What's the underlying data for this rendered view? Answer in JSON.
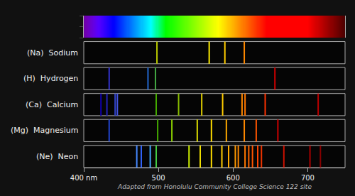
{
  "chart_data": {
    "type": "spectrum",
    "xlim": [
      400,
      750
    ],
    "xticks": [
      {
        "value": 400,
        "label": "400 nm"
      },
      500,
      600,
      700
    ],
    "grid": false,
    "series": [
      {
        "name": "(Na)  Sodium",
        "values": [
          498,
          568,
          589,
          615
        ],
        "colors": [
          "#b8c800",
          "#ffee00",
          "#ffcc00",
          "#ff8800"
        ]
      },
      {
        "name": "(H)  Hydrogen",
        "values": [
          434,
          486,
          496,
          656
        ],
        "colors": [
          "#3333cc",
          "#2266cc",
          "#44aa44",
          "#cc0000"
        ]
      },
      {
        "name": "(Ca)  Calcium",
        "values": [
          423,
          431,
          442,
          445,
          497,
          527,
          558,
          586,
          612,
          616,
          643,
          714
        ],
        "colors": [
          "#1100aa",
          "#2222bb",
          "#3344cc",
          "#4455dd",
          "#44aa00",
          "#88bb00",
          "#ddcc00",
          "#ffcc00",
          "#ff8800",
          "#ff7700",
          "#ff3300",
          "#bb0000"
        ]
      },
      {
        "name": "(Mg)  Magnesium",
        "values": [
          434,
          499,
          518,
          552,
          571,
          591,
          615,
          631,
          660
        ],
        "colors": [
          "#2244cc",
          "#44aa00",
          "#88cc00",
          "#dddd00",
          "#ffdd00",
          "#ffaa00",
          "#ff8800",
          "#ff5500",
          "#cc0000"
        ]
      },
      {
        "name": "(Ne)  Neon",
        "values": [
          471,
          477,
          489,
          497,
          541,
          556,
          571,
          585,
          594,
          603,
          607,
          616,
          621,
          626,
          633,
          638,
          668,
          703,
          717
        ],
        "colors": [
          "#4488ff",
          "#3366ff",
          "#44aaff",
          "#44cc44",
          "#ccee00",
          "#eedd00",
          "#ffdd00",
          "#ffcc00",
          "#ffaa00",
          "#ff9900",
          "#ff8800",
          "#ff7700",
          "#ff6600",
          "#ff5500",
          "#ff4400",
          "#ee3300",
          "#cc1100",
          "#aa0000",
          "#880000"
        ]
      }
    ],
    "annotations": [
      "Adapted from Honolulu Community College Science 122 site"
    ]
  }
}
